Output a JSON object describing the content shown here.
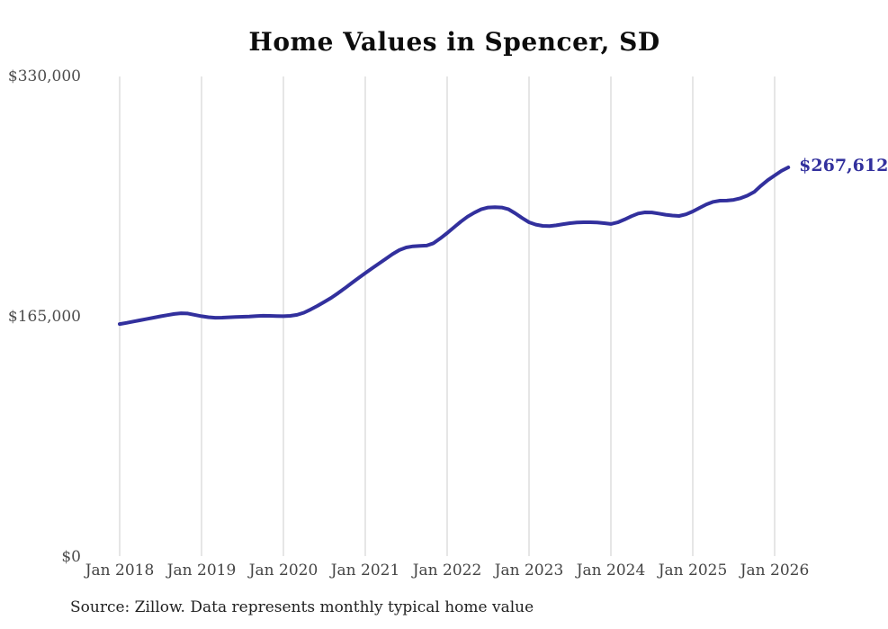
{
  "page": {
    "background": "#ffffff"
  },
  "chart_data": {
    "type": "line",
    "title": "Home Values in Spencer, SD",
    "xlabel": "",
    "ylabel": "",
    "ylim": [
      0,
      330000
    ],
    "grid": "vertical-only",
    "grid_color": "#cccccc",
    "line_color": "#32309d",
    "end_label": "$267,612",
    "end_value": 267612,
    "source_note": "Source: Zillow. Data represents monthly typical home value",
    "x_ticks": [
      "Jan 2018",
      "Jan 2019",
      "Jan 2020",
      "Jan 2021",
      "Jan 2022",
      "Jan 2023",
      "Jan 2024",
      "Jan 2025",
      "Jan 2026"
    ],
    "y_ticks": [
      {
        "label": "$330,000",
        "value": 330000
      },
      {
        "label": "$165,000",
        "value": 165000
      },
      {
        "label": "$0",
        "value": 0
      }
    ],
    "series": [
      {
        "name": "Monthly typical home value",
        "start_month": "2018-01",
        "frequency": "monthly",
        "values": [
          160000,
          160800,
          161700,
          162600,
          163500,
          164400,
          165300,
          166100,
          166900,
          167400,
          167200,
          166300,
          165400,
          164700,
          164300,
          164400,
          164600,
          164800,
          165000,
          165200,
          165500,
          165700,
          165600,
          165500,
          165400,
          165600,
          166300,
          167800,
          170000,
          172500,
          175200,
          178000,
          181200,
          184600,
          188100,
          191600,
          195000,
          198300,
          201500,
          204800,
          208000,
          210800,
          212600,
          213400,
          213700,
          213900,
          215500,
          218800,
          222500,
          226400,
          230300,
          233800,
          236500,
          238800,
          240000,
          240200,
          240000,
          238800,
          236000,
          232800,
          229900,
          228300,
          227400,
          227300,
          227800,
          228600,
          229300,
          229700,
          229900,
          229900,
          229700,
          229300,
          228700,
          229800,
          231800,
          234000,
          235900,
          236700,
          236600,
          235900,
          235100,
          234500,
          234200,
          235300,
          237300,
          239800,
          242200,
          243900,
          244700,
          244800,
          245300,
          246400,
          248200,
          250700,
          255000,
          258800,
          262000,
          265200,
          267612
        ]
      }
    ]
  }
}
